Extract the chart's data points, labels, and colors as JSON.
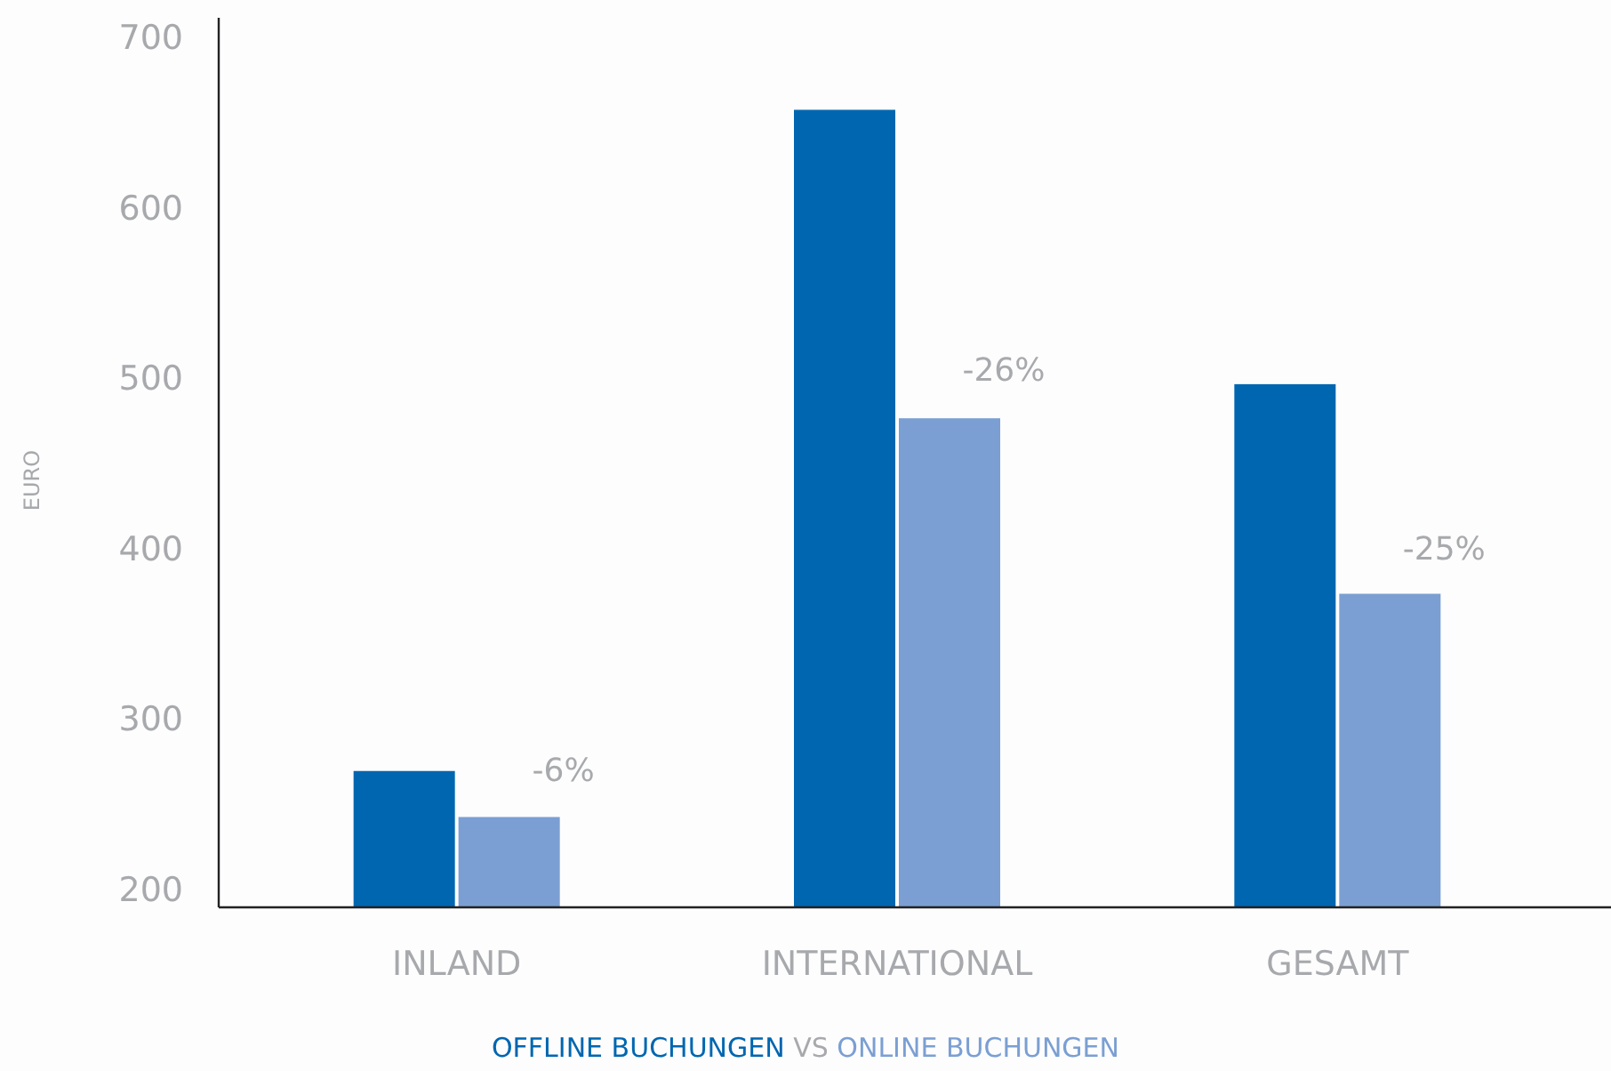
{
  "chart_data": {
    "type": "bar",
    "ylabel": "EURO",
    "categories": [
      "INLAND",
      "INTERNATIONAL",
      "GESAMT"
    ],
    "series": [
      {
        "name": "OFFLINE BUCHUNGEN",
        "color": "#0066b0",
        "values": [
          270,
          658,
          497
        ]
      },
      {
        "name": "ONLINE BUCHUNGEN",
        "color": "#7b9fd2",
        "values": [
          243,
          477,
          374
        ]
      }
    ],
    "ylim": [
      190,
      712
    ],
    "yticks": [
      200,
      300,
      400,
      500,
      600,
      700
    ],
    "grid": false,
    "legend": "bottom",
    "annotations": [
      "VS",
      {
        "text": "-6%",
        "x": "INLAND",
        "y": 270
      },
      {
        "text": "-26%",
        "x": "INTERNATIONAL",
        "y": 505
      },
      {
        "text": "-25%",
        "x": "GESAMT",
        "y": 400
      }
    ]
  }
}
